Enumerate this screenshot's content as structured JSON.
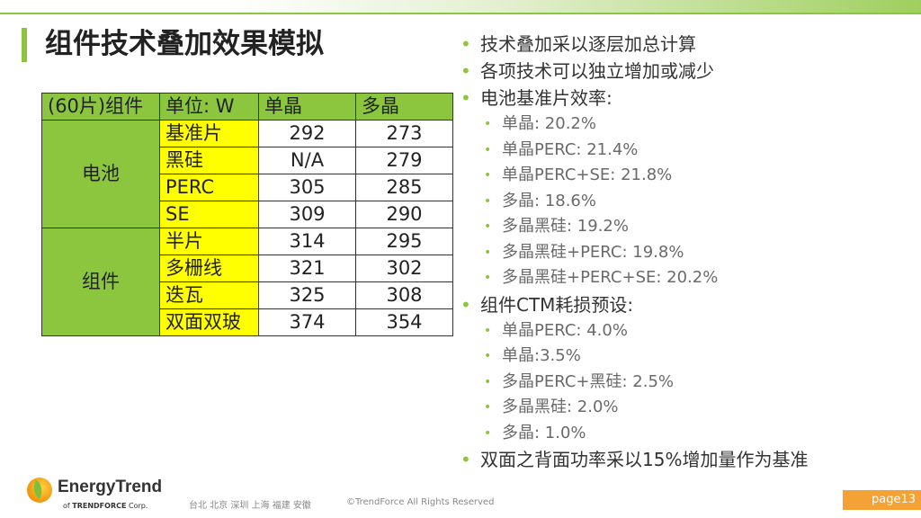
{
  "title": "组件技术叠加效果模拟",
  "table": {
    "headers": [
      "(60片)组件",
      "单位: W",
      "单晶",
      "多晶"
    ],
    "groups": [
      {
        "name": "电池",
        "rows": [
          {
            "label": "基准片",
            "mono": "292",
            "poly": "273"
          },
          {
            "label": "黑硅",
            "mono": "N/A",
            "poly": "279"
          },
          {
            "label": "PERC",
            "mono": "305",
            "poly": "285"
          },
          {
            "label": "SE",
            "mono": "309",
            "poly": "290"
          }
        ]
      },
      {
        "name": "组件",
        "rows": [
          {
            "label": "半片",
            "mono": "314",
            "poly": "295"
          },
          {
            "label": "多栅线",
            "mono": "321",
            "poly": "302"
          },
          {
            "label": "迭瓦",
            "mono": "325",
            "poly": "308"
          },
          {
            "label": "双面双玻",
            "mono": "374",
            "poly": "354"
          }
        ]
      }
    ]
  },
  "bullets": [
    {
      "text": "技术叠加采以逐层加总计算",
      "sub": []
    },
    {
      "text": "各项技术可以独立增加或减少",
      "sub": []
    },
    {
      "text": "电池基准片效率:",
      "sub": [
        "单晶: 20.2%",
        "单晶PERC: 21.4%",
        "单晶PERC+SE: 21.8%",
        "多晶: 18.6%",
        "多晶黑硅: 19.2%",
        "多晶黑硅+PERC: 19.8%",
        "多晶黑硅+PERC+SE: 20.2%"
      ]
    },
    {
      "text": "组件CTM耗损预设:",
      "sub": [
        "单晶PERC: 4.0%",
        "单晶:3.5%",
        "多晶PERC+黑硅: 2.5%",
        "多晶黑硅: 2.0%",
        "多晶: 1.0%"
      ]
    },
    {
      "text": "双面之背面功率采以15%增加量作为基准",
      "sub": []
    }
  ],
  "bullet_glyph": "•",
  "footer": {
    "logo_name": "EnergyTrend",
    "logo_sub_of": "of",
    "logo_sub_brand": "TRENDFORCE",
    "logo_sub_corp": "Corp.",
    "cities": "台北 北京 深圳 上海 福建 安徽",
    "copyright": "©TrendForce All Rights Reserved",
    "page": "page13"
  },
  "colors": {
    "accent_green": "#8cc63f",
    "highlight_yellow": "#ffff00",
    "page_orange": "#f4a235"
  }
}
